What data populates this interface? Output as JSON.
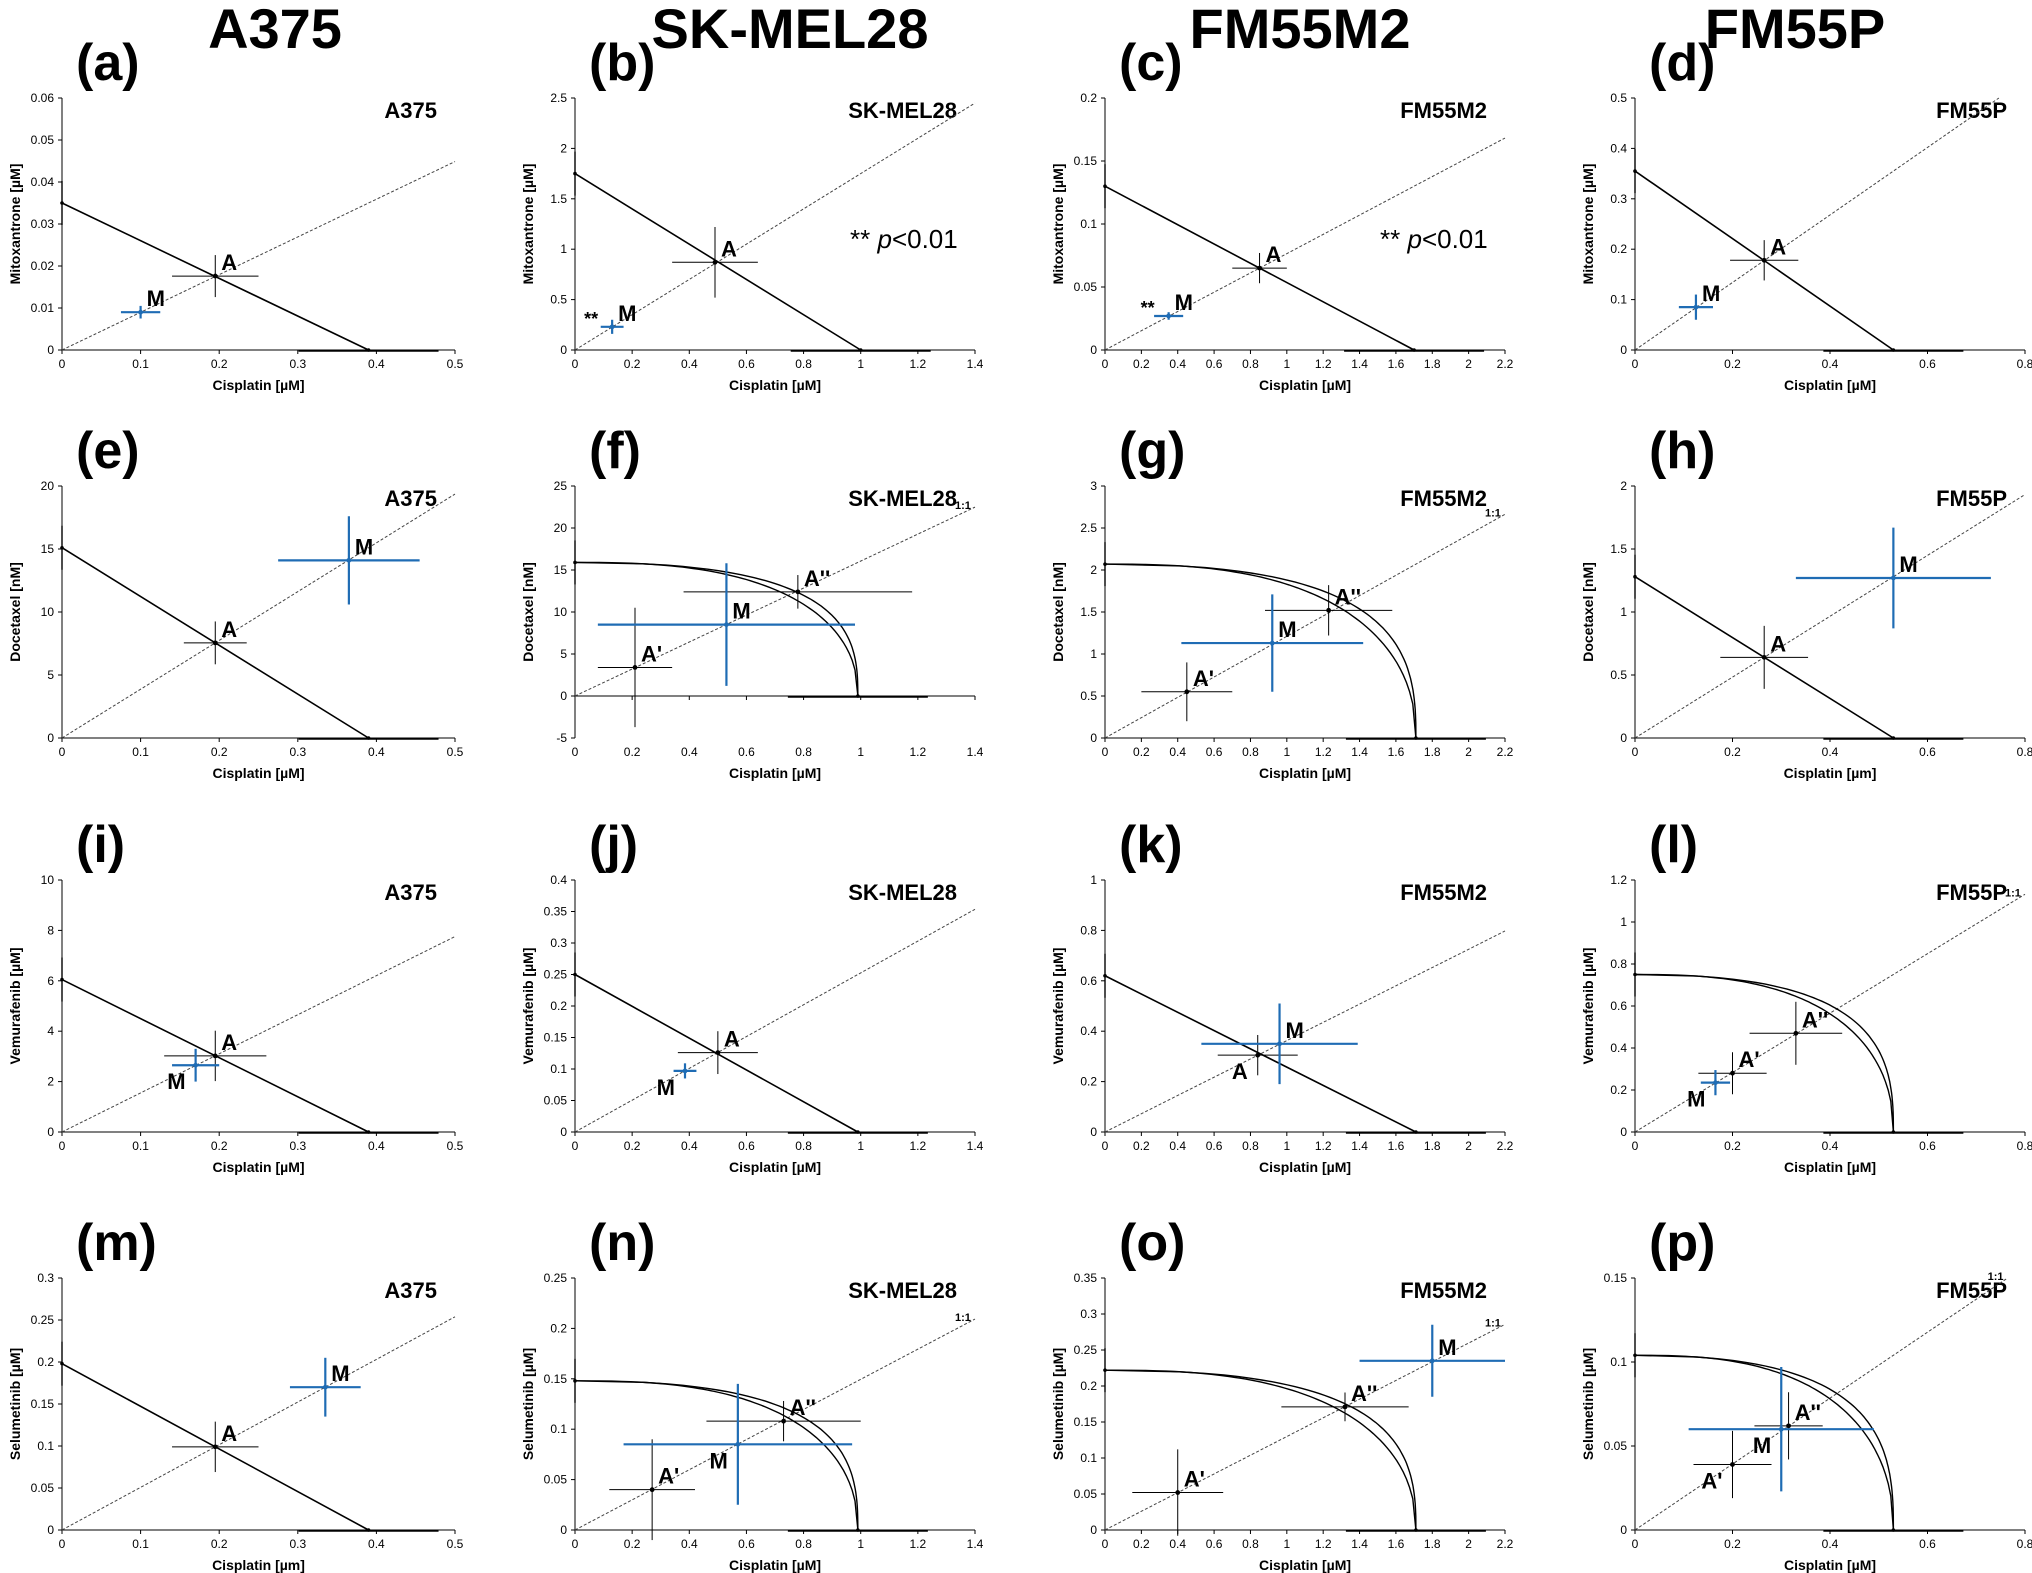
{
  "headers": [
    "A375",
    "SK-MEL28",
    "FM55M2",
    "FM55P"
  ],
  "chart_data": [
    {
      "type": "scatter",
      "panel": "(a)",
      "cell": "A375",
      "xlabel": "Cisplatin [µM]",
      "ylabel": "Mitoxantrone [µM]",
      "xlim": [
        0,
        0.5
      ],
      "ylim": [
        0,
        0.06
      ],
      "xticks": [
        0,
        0.1,
        0.2,
        0.3,
        0.4,
        0.5
      ],
      "yticks": [
        0,
        0.01,
        0.02,
        0.03,
        0.04,
        0.05,
        0.06
      ],
      "dec_x": 1,
      "dec_y": 2,
      "isobole": {
        "x_ed50": 0.39,
        "y_ed50": 0.035
      },
      "points": [
        {
          "label": "A",
          "x": 0.195,
          "y": 0.0176,
          "sx": 0.055,
          "sy": 0.005,
          "color": "#000000",
          "label_pos": "ur"
        },
        {
          "label": "M",
          "x": 0.1,
          "y": 0.009,
          "sx": 0.025,
          "sy": 0.0015,
          "color": "#1f6cb4",
          "label_pos": "ur"
        }
      ]
    },
    {
      "type": "scatter",
      "panel": "(b)",
      "cell": "SK-MEL28",
      "xlabel": "Cisplatin [µM]",
      "ylabel": "Mitoxantrone [µM]",
      "xlim": [
        0,
        1.4
      ],
      "ylim": [
        0,
        2.5
      ],
      "xticks": [
        0,
        0.2,
        0.4,
        0.6,
        0.8,
        1,
        1.2,
        1.4
      ],
      "yticks": [
        0,
        0.5,
        1,
        1.5,
        2,
        2.5
      ],
      "dec_x": 1,
      "dec_y": 1,
      "isobole": {
        "x_ed50": 1.0,
        "y_ed50": 1.75
      },
      "points": [
        {
          "label": "A",
          "x": 0.49,
          "y": 0.87,
          "sx": 0.15,
          "sy": 0.35,
          "color": "#000000",
          "label_pos": "ur"
        },
        {
          "label": "M",
          "x": 0.13,
          "y": 0.23,
          "sx": 0.04,
          "sy": 0.07,
          "color": "#1f6cb4",
          "label_pos": "ur",
          "stars": "**"
        }
      ],
      "significance": "p<0.01"
    },
    {
      "type": "scatter",
      "panel": "(c)",
      "cell": "FM55M2",
      "xlabel": "Cisplatin [µM]",
      "ylabel": "Mitoxantrone [µM]",
      "xlim": [
        0,
        2.2
      ],
      "ylim": [
        0,
        0.2
      ],
      "xticks": [
        0,
        0.2,
        0.4,
        0.6,
        0.8,
        1,
        1.2,
        1.4,
        1.6,
        1.8,
        2,
        2.2
      ],
      "yticks": [
        0,
        0.05,
        0.1,
        0.15,
        0.2
      ],
      "dec_x": 1,
      "dec_y": 2,
      "isobole": {
        "x_ed50": 1.7,
        "y_ed50": 0.13
      },
      "points": [
        {
          "label": "A",
          "x": 0.85,
          "y": 0.065,
          "sx": 0.15,
          "sy": 0.012,
          "color": "#000000",
          "label_pos": "ur"
        },
        {
          "label": "M",
          "x": 0.35,
          "y": 0.027,
          "sx": 0.08,
          "sy": 0.003,
          "color": "#1f6cb4",
          "label_pos": "ur",
          "stars": "**"
        }
      ],
      "significance": "p<0.01"
    },
    {
      "type": "scatter",
      "panel": "(d)",
      "cell": "FM55P",
      "xlabel": "Cisplatin [µM]",
      "ylabel": "Mitoxantrone [µM]",
      "xlim": [
        0,
        0.8
      ],
      "ylim": [
        0,
        0.5
      ],
      "xticks": [
        0,
        0.2,
        0.4,
        0.6,
        0.8
      ],
      "yticks": [
        0,
        0.1,
        0.2,
        0.3,
        0.4,
        0.5
      ],
      "dec_x": 1,
      "dec_y": 1,
      "isobole": {
        "x_ed50": 0.53,
        "y_ed50": 0.355
      },
      "points": [
        {
          "label": "A",
          "x": 0.265,
          "y": 0.178,
          "sx": 0.07,
          "sy": 0.04,
          "color": "#000000",
          "label_pos": "ur"
        },
        {
          "label": "M",
          "x": 0.125,
          "y": 0.085,
          "sx": 0.035,
          "sy": 0.025,
          "color": "#1f6cb4",
          "label_pos": "ur"
        }
      ]
    },
    {
      "type": "scatter",
      "panel": "(e)",
      "cell": "A375",
      "xlabel": "Cisplatin [µM]",
      "ylabel": "Docetaxel [nM]",
      "xlim": [
        0,
        0.5
      ],
      "ylim": [
        0,
        20
      ],
      "xticks": [
        0,
        0.1,
        0.2,
        0.3,
        0.4,
        0.5
      ],
      "yticks": [
        0,
        5,
        10,
        15,
        20
      ],
      "dec_x": 1,
      "dec_y": 0,
      "isobole": {
        "x_ed50": 0.39,
        "y_ed50": 15.1
      },
      "points": [
        {
          "label": "A",
          "x": 0.195,
          "y": 7.55,
          "sx": 0.04,
          "sy": 1.7,
          "color": "#000000",
          "label_pos": "ur"
        },
        {
          "label": "M",
          "x": 0.365,
          "y": 14.1,
          "sx": 0.09,
          "sy": 3.5,
          "color": "#1f6cb4",
          "label_pos": "ur"
        }
      ]
    },
    {
      "type": "scatter",
      "panel": "(f)",
      "cell": "SK-MEL28",
      "xlabel": "Cisplatin [µM]",
      "ylabel": "Docetaxel [nM]",
      "xlim": [
        0,
        1.4
      ],
      "ylim": [
        -5,
        25
      ],
      "xticks": [
        0,
        0.2,
        0.4,
        0.6,
        0.8,
        1,
        1.2,
        1.4
      ],
      "yticks": [
        -5,
        0,
        5,
        10,
        15,
        20,
        25
      ],
      "dec_x": 1,
      "dec_y": 0,
      "curved": {
        "x_ed50": 0.99,
        "y_ed50": 15.9
      },
      "ratio_label": "1:1",
      "points": [
        {
          "label": "A'",
          "x": 0.21,
          "y": 3.4,
          "sx": 0.13,
          "sy": 7.1,
          "color": "#000000",
          "label_pos": "ur"
        },
        {
          "label": "A''",
          "x": 0.78,
          "y": 12.4,
          "sx": 0.4,
          "sy": 2.0,
          "color": "#000000",
          "label_pos": "ur"
        },
        {
          "label": "M",
          "x": 0.53,
          "y": 8.5,
          "sx": 0.45,
          "sy": 7.3,
          "color": "#1f6cb4",
          "label_pos": "ur"
        }
      ]
    },
    {
      "type": "scatter",
      "panel": "(g)",
      "cell": "FM55M2",
      "xlabel": "Cisplatin [µM]",
      "ylabel": "Docetaxel [nM]",
      "xlim": [
        0,
        2.2
      ],
      "ylim": [
        0,
        3.0
      ],
      "xticks": [
        0,
        0.2,
        0.4,
        0.6,
        0.8,
        1,
        1.2,
        1.4,
        1.6,
        1.8,
        2,
        2.2
      ],
      "yticks": [
        0,
        0.5,
        1.0,
        1.5,
        2.0,
        2.5,
        3.0
      ],
      "dec_x": 1,
      "dec_y": 1,
      "curved": {
        "x_ed50": 1.71,
        "y_ed50": 2.07
      },
      "ratio_label": "1:1",
      "points": [
        {
          "label": "A'",
          "x": 0.45,
          "y": 0.55,
          "sx": 0.25,
          "sy": 0.35,
          "color": "#000000",
          "label_pos": "ur"
        },
        {
          "label": "A''",
          "x": 1.23,
          "y": 1.52,
          "sx": 0.35,
          "sy": 0.3,
          "color": "#000000",
          "label_pos": "ur"
        },
        {
          "label": "M",
          "x": 0.92,
          "y": 1.13,
          "sx": 0.5,
          "sy": 0.58,
          "color": "#1f6cb4",
          "label_pos": "ur"
        }
      ]
    },
    {
      "type": "scatter",
      "panel": "(h)",
      "cell": "FM55P",
      "xlabel": "Cisplatin [µm]",
      "ylabel": "Docetaxel [nM]",
      "xlim": [
        0,
        0.8
      ],
      "ylim": [
        0,
        2.0
      ],
      "xticks": [
        0,
        0.2,
        0.4,
        0.6,
        0.8
      ],
      "yticks": [
        0,
        0.5,
        1.0,
        1.5,
        2.0
      ],
      "dec_x": 1,
      "dec_y": 1,
      "isobole": {
        "x_ed50": 0.53,
        "y_ed50": 1.28
      },
      "points": [
        {
          "label": "A",
          "x": 0.265,
          "y": 0.64,
          "sx": 0.09,
          "sy": 0.25,
          "color": "#000000",
          "label_pos": "ur"
        },
        {
          "label": "M",
          "x": 0.53,
          "y": 1.27,
          "sx": 0.2,
          "sy": 0.4,
          "color": "#1f6cb4",
          "label_pos": "ur"
        }
      ]
    },
    {
      "type": "scatter",
      "panel": "(i)",
      "cell": "A375",
      "xlabel": "Cisplatin [µM]",
      "ylabel": "Vemurafenib [µM]",
      "xlim": [
        0,
        0.5
      ],
      "ylim": [
        0,
        10
      ],
      "xticks": [
        0,
        0.1,
        0.2,
        0.3,
        0.4,
        0.5
      ],
      "yticks": [
        0,
        2,
        4,
        6,
        8,
        10
      ],
      "dec_x": 1,
      "dec_y": 1,
      "isobole": {
        "x_ed50": 0.39,
        "y_ed50": 6.05
      },
      "points": [
        {
          "label": "A",
          "x": 0.195,
          "y": 3.02,
          "sx": 0.065,
          "sy": 1.0,
          "color": "#000000",
          "label_pos": "ur"
        },
        {
          "label": "M",
          "x": 0.17,
          "y": 2.65,
          "sx": 0.03,
          "sy": 0.65,
          "color": "#1f6cb4",
          "label_pos": "dl"
        }
      ]
    },
    {
      "type": "scatter",
      "panel": "(j)",
      "cell": "SK-MEL28",
      "xlabel": "Cisplatin [µM]",
      "ylabel": "Vemurafenib [µM]",
      "xlim": [
        0,
        1.4
      ],
      "ylim": [
        0,
        0.4
      ],
      "xticks": [
        0,
        0.2,
        0.4,
        0.6,
        0.8,
        1,
        1.2,
        1.4
      ],
      "yticks": [
        0,
        0.05,
        0.1,
        0.15,
        0.2,
        0.25,
        0.3,
        0.35,
        0.4
      ],
      "dec_x": 1,
      "dec_y": 2,
      "isobole": {
        "x_ed50": 0.99,
        "y_ed50": 0.25
      },
      "points": [
        {
          "label": "A",
          "x": 0.5,
          "y": 0.126,
          "sx": 0.14,
          "sy": 0.034,
          "color": "#000000",
          "label_pos": "ur"
        },
        {
          "label": "M",
          "x": 0.385,
          "y": 0.097,
          "sx": 0.04,
          "sy": 0.012,
          "color": "#1f6cb4",
          "label_pos": "dl"
        }
      ]
    },
    {
      "type": "scatter",
      "panel": "(k)",
      "cell": "FM55M2",
      "xlabel": "Cisplatin [µM]",
      "ylabel": "Vemurafenib [µM]",
      "xlim": [
        0,
        2.2
      ],
      "ylim": [
        0,
        1
      ],
      "xticks": [
        0,
        0.2,
        0.4,
        0.6,
        0.8,
        1,
        1.2,
        1.4,
        1.6,
        1.8,
        2,
        2.2
      ],
      "yticks": [
        0,
        0.2,
        0.4,
        0.6,
        0.8,
        1
      ],
      "dec_x": 1,
      "dec_y": 1,
      "isobole": {
        "x_ed50": 1.71,
        "y_ed50": 0.62
      },
      "points": [
        {
          "label": "A",
          "x": 0.84,
          "y": 0.305,
          "sx": 0.22,
          "sy": 0.08,
          "color": "#000000",
          "label_pos": "dl"
        },
        {
          "label": "M",
          "x": 0.96,
          "y": 0.35,
          "sx": 0.43,
          "sy": 0.16,
          "color": "#1f6cb4",
          "label_pos": "ur"
        }
      ]
    },
    {
      "type": "scatter",
      "panel": "(l)",
      "cell": "FM55P",
      "xlabel": "Cisplatin [µM]",
      "ylabel": "Vemurafenib [µM]",
      "xlim": [
        0,
        0.8
      ],
      "ylim": [
        0,
        1.2
      ],
      "xticks": [
        0,
        0.2,
        0.4,
        0.6,
        0.8
      ],
      "yticks": [
        0,
        0.2,
        0.4,
        0.6,
        0.8,
        1.0,
        1.2
      ],
      "dec_x": 1,
      "dec_y": 1,
      "curved": {
        "x_ed50": 0.53,
        "y_ed50": 0.75
      },
      "ratio_label": "1:1",
      "points": [
        {
          "label": "A'",
          "x": 0.2,
          "y": 0.28,
          "sx": 0.07,
          "sy": 0.1,
          "color": "#000000",
          "label_pos": "ur"
        },
        {
          "label": "A''",
          "x": 0.33,
          "y": 0.47,
          "sx": 0.095,
          "sy": 0.15,
          "color": "#000000",
          "label_pos": "ur"
        },
        {
          "label": "M",
          "x": 0.165,
          "y": 0.235,
          "sx": 0.03,
          "sy": 0.06,
          "color": "#1f6cb4",
          "label_pos": "dl"
        }
      ]
    },
    {
      "type": "scatter",
      "panel": "(m)",
      "cell": "A375",
      "xlabel": "Cisplatin [µm]",
      "ylabel": "Selumetinib [µM]",
      "xlim": [
        0,
        0.5
      ],
      "ylim": [
        0,
        0.3
      ],
      "xticks": [
        0,
        0.1,
        0.2,
        0.3,
        0.4,
        0.5
      ],
      "yticks": [
        0,
        0.05,
        0.1,
        0.15,
        0.2,
        0.25,
        0.3
      ],
      "dec_x": 1,
      "dec_y": 2,
      "isobole": {
        "x_ed50": 0.39,
        "y_ed50": 0.198
      },
      "points": [
        {
          "label": "A",
          "x": 0.195,
          "y": 0.099,
          "sx": 0.055,
          "sy": 0.03,
          "color": "#000000",
          "label_pos": "ur"
        },
        {
          "label": "M",
          "x": 0.335,
          "y": 0.17,
          "sx": 0.045,
          "sy": 0.035,
          "color": "#1f6cb4",
          "label_pos": "ur"
        }
      ]
    },
    {
      "type": "scatter",
      "panel": "(n)",
      "cell": "SK-MEL28",
      "xlabel": "Cisplatin [µM]",
      "ylabel": "Selumetinib [µM]",
      "xlim": [
        0,
        1.4
      ],
      "ylim": [
        0,
        0.25
      ],
      "xticks": [
        0,
        0.2,
        0.4,
        0.6,
        0.8,
        1,
        1.2,
        1.4
      ],
      "yticks": [
        0,
        0.05,
        0.1,
        0.15,
        0.2,
        0.25
      ],
      "dec_x": 1,
      "dec_y": 2,
      "curved": {
        "x_ed50": 0.99,
        "y_ed50": 0.148
      },
      "ratio_label": "1:1",
      "points": [
        {
          "label": "A'",
          "x": 0.27,
          "y": 0.04,
          "sx": 0.15,
          "sy": 0.05,
          "color": "#000000",
          "label_pos": "ur"
        },
        {
          "label": "A''",
          "x": 0.73,
          "y": 0.108,
          "sx": 0.27,
          "sy": 0.02,
          "color": "#000000",
          "label_pos": "ur"
        },
        {
          "label": "M",
          "x": 0.57,
          "y": 0.085,
          "sx": 0.4,
          "sy": 0.06,
          "color": "#1f6cb4",
          "label_pos": "dl"
        }
      ]
    },
    {
      "type": "scatter",
      "panel": "(o)",
      "cell": "FM55M2",
      "xlabel": "Cisplatin [µM]",
      "ylabel": "Selumetinib [µM]",
      "xlim": [
        0,
        2.2
      ],
      "ylim": [
        0,
        0.35
      ],
      "xticks": [
        0,
        0.2,
        0.4,
        0.6,
        0.8,
        1,
        1.2,
        1.4,
        1.6,
        1.8,
        2,
        2.2
      ],
      "yticks": [
        0,
        0.05,
        0.1,
        0.15,
        0.2,
        0.25,
        0.3,
        0.35
      ],
      "dec_x": 1,
      "dec_y": 2,
      "curved": {
        "x_ed50": 1.71,
        "y_ed50": 0.222
      },
      "ratio_label": "1:1",
      "points": [
        {
          "label": "A'",
          "x": 0.4,
          "y": 0.052,
          "sx": 0.25,
          "sy": 0.06,
          "color": "#000000",
          "label_pos": "ur"
        },
        {
          "label": "A''",
          "x": 1.32,
          "y": 0.171,
          "sx": 0.35,
          "sy": 0.02,
          "color": "#000000",
          "label_pos": "ur"
        },
        {
          "label": "M",
          "x": 1.8,
          "y": 0.235,
          "sx": 0.4,
          "sy": 0.05,
          "color": "#1f6cb4",
          "label_pos": "ur"
        }
      ]
    },
    {
      "type": "scatter",
      "panel": "(p)",
      "cell": "FM55P",
      "xlabel": "Cisplatin [µM]",
      "ylabel": "Selumetinib [µM]",
      "xlim": [
        0,
        0.8
      ],
      "ylim": [
        0,
        0.15
      ],
      "xticks": [
        0,
        0.2,
        0.4,
        0.6,
        0.8
      ],
      "yticks": [
        0,
        0.05,
        0.1,
        0.15
      ],
      "dec_x": 1,
      "dec_y": 2,
      "curved": {
        "x_ed50": 0.53,
        "y_ed50": 0.104
      },
      "ratio_label": "1:1",
      "points": [
        {
          "label": "A'",
          "x": 0.2,
          "y": 0.039,
          "sx": 0.08,
          "sy": 0.02,
          "color": "#000000",
          "label_pos": "dl"
        },
        {
          "label": "A''",
          "x": 0.315,
          "y": 0.062,
          "sx": 0.07,
          "sy": 0.02,
          "color": "#000000",
          "label_pos": "ur"
        },
        {
          "label": "M",
          "x": 0.3,
          "y": 0.06,
          "sx": 0.19,
          "sy": 0.037,
          "color": "#1f6cb4",
          "label_pos": "dl"
        }
      ]
    }
  ]
}
